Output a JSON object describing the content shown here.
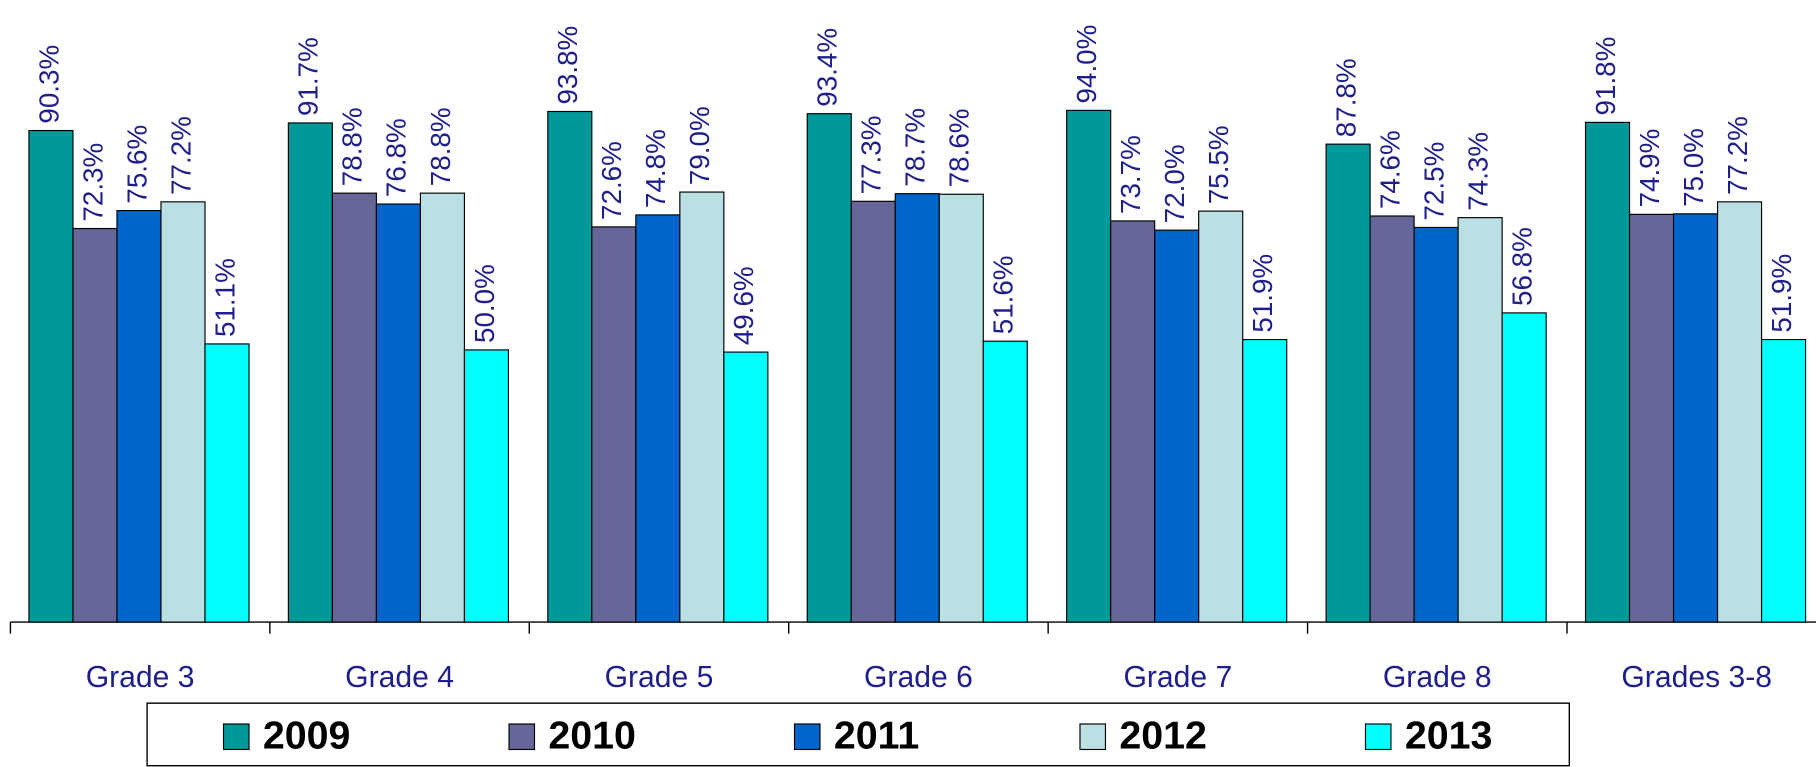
{
  "chart_data": {
    "type": "bar",
    "categories": [
      "Grade 3",
      "Grade 4",
      "Grade 5",
      "Grade 6",
      "Grade 7",
      "Grade 8",
      "Grades 3-8"
    ],
    "ylim": [
      0,
      100
    ],
    "legend": "bottom",
    "series": [
      {
        "name": "2009",
        "color": "#009999",
        "values": [
          90.3,
          91.7,
          93.8,
          93.4,
          94.0,
          87.8,
          91.8
        ],
        "value_labels": [
          "90.3%",
          "91.7%",
          "93.8%",
          "93.4%",
          "94.0%",
          "87.8%",
          "91.8%"
        ]
      },
      {
        "name": "2010",
        "color": "#666699",
        "values": [
          72.3,
          78.8,
          72.6,
          77.3,
          73.7,
          74.6,
          74.9
        ],
        "value_labels": [
          "72.3%",
          "78.8%",
          "72.6%",
          "77.3%",
          "73.7%",
          "74.6%",
          "74.9%"
        ]
      },
      {
        "name": "2011",
        "color": "#0066cc",
        "values": [
          75.6,
          76.8,
          74.8,
          78.7,
          72.0,
          72.5,
          75.0
        ],
        "value_labels": [
          "75.6%",
          "76.8%",
          "74.8%",
          "78.7%",
          "72.0%",
          "72.5%",
          "75.0%"
        ]
      },
      {
        "name": "2012",
        "color": "#bbe0e3",
        "values": [
          77.2,
          78.8,
          79.0,
          78.6,
          75.5,
          74.3,
          77.2
        ],
        "value_labels": [
          "77.2%",
          "78.8%",
          "79.0%",
          "78.6%",
          "75.5%",
          "74.3%",
          "77.2%"
        ]
      },
      {
        "name": "2013",
        "color": "#00ffff",
        "values": [
          51.1,
          50.0,
          49.6,
          51.6,
          51.9,
          56.8,
          51.9
        ],
        "value_labels": [
          "51.1%",
          "50.0%",
          "49.6%",
          "51.6%",
          "51.9%",
          "56.8%",
          "51.9%"
        ]
      }
    ]
  }
}
